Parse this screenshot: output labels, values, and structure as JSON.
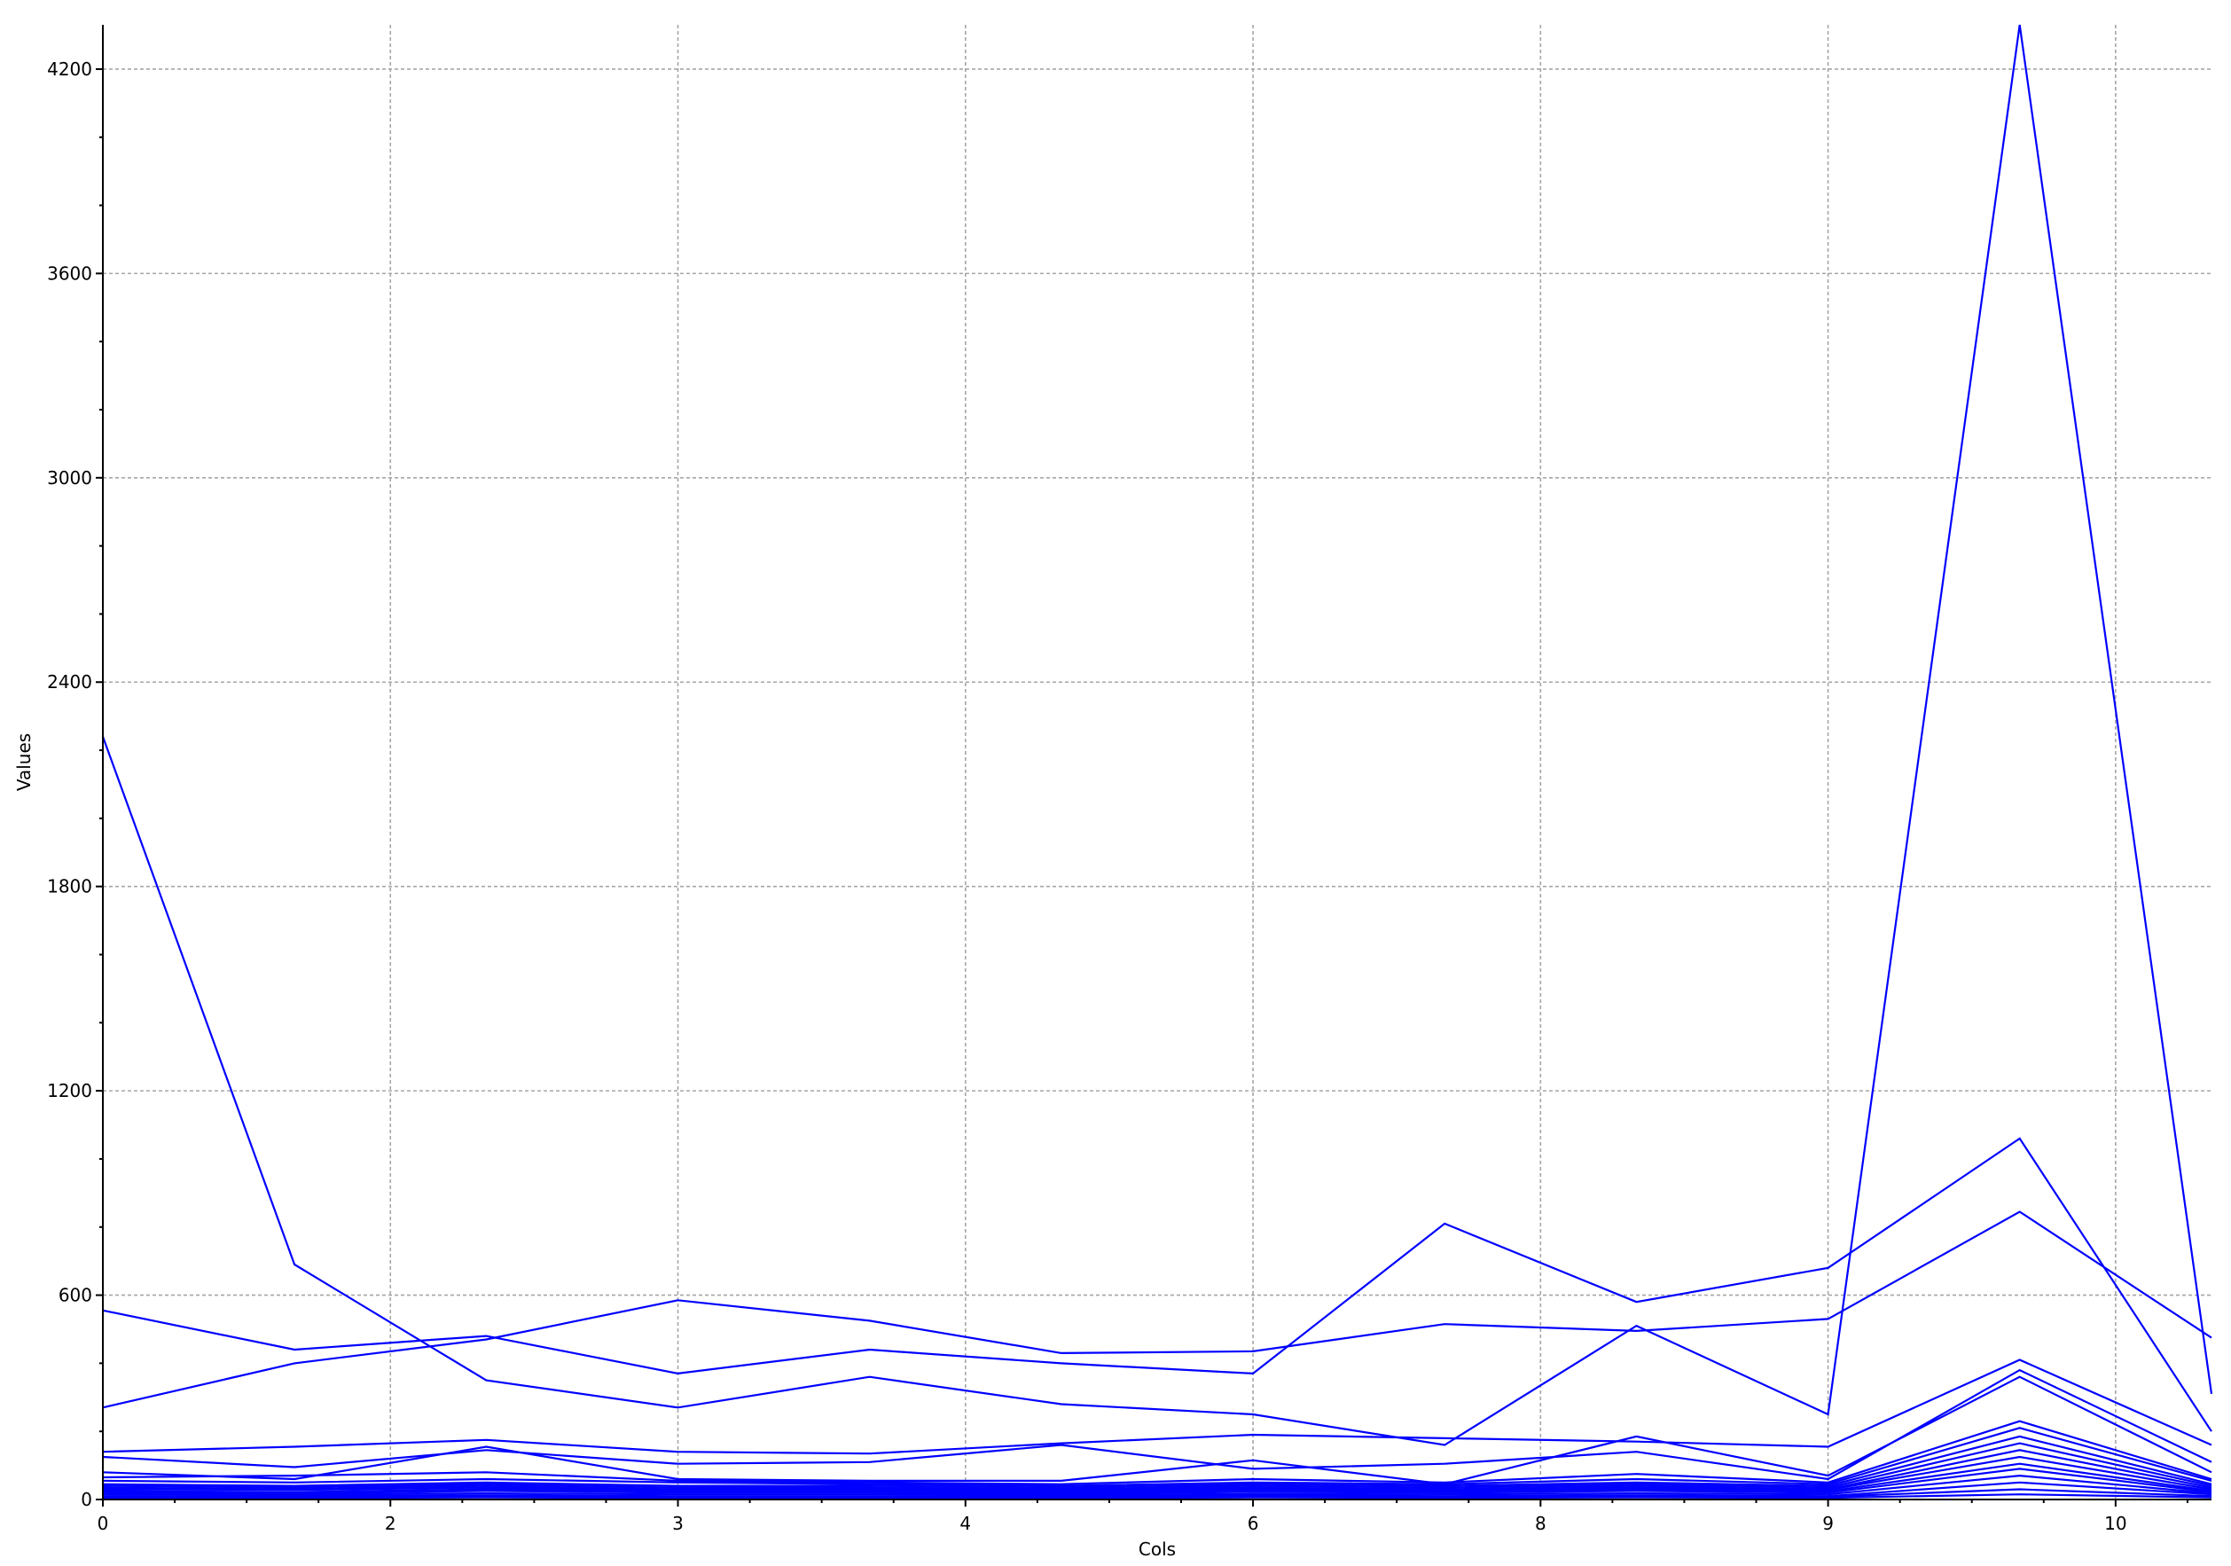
{
  "chart_data": {
    "type": "line",
    "xlabel": "Cols",
    "ylabel": "Values",
    "x": [
      0,
      1.333,
      2.667,
      4,
      5.333,
      6.667,
      8,
      9.333,
      10.667,
      12,
      13.333,
      14.667
    ],
    "xlim": [
      0,
      14.667
    ],
    "ylim": [
      0,
      4330
    ],
    "xticks": [
      0,
      2,
      4,
      6,
      8,
      10,
      12,
      14
    ],
    "xtick_labels": [
      "0",
      "2",
      "3",
      "4",
      "6",
      "8",
      "9",
      "10"
    ],
    "yticks": [
      0,
      600,
      1200,
      1800,
      2400,
      3000,
      3600,
      4200
    ],
    "ytick_labels": [
      "0",
      "600",
      "1200",
      "1800",
      "2400",
      "3000",
      "3600",
      "4200"
    ],
    "y_minor_step": 200,
    "grid": true,
    "legend": "none",
    "line_color": "#0000ff",
    "series": [
      {
        "values": [
          2240,
          690,
          350,
          270,
          360,
          280,
          250,
          160,
          510,
          250,
          4330,
          310
        ]
      },
      {
        "values": [
          270,
          400,
          470,
          585,
          525,
          430,
          435,
          515,
          495,
          530,
          845,
          475
        ]
      },
      {
        "values": [
          555,
          440,
          480,
          370,
          440,
          400,
          370,
          810,
          580,
          680,
          1060,
          200
        ]
      },
      {
        "values": [
          140,
          155,
          175,
          140,
          135,
          165,
          190,
          180,
          170,
          155,
          410,
          160
        ]
      },
      {
        "values": [
          125,
          95,
          145,
          105,
          110,
          160,
          90,
          105,
          140,
          60,
          380,
          110
        ]
      },
      {
        "values": [
          80,
          60,
          155,
          60,
          55,
          55,
          115,
          45,
          185,
          70,
          360,
          80
        ]
      },
      {
        "values": [
          65,
          70,
          80,
          55,
          50,
          45,
          60,
          50,
          75,
          50,
          230,
          60
        ]
      },
      {
        "values": [
          55,
          50,
          60,
          50,
          45,
          40,
          50,
          45,
          60,
          45,
          210,
          55
        ]
      },
      {
        "values": [
          45,
          40,
          50,
          40,
          40,
          35,
          45,
          40,
          50,
          40,
          185,
          45
        ]
      },
      {
        "values": [
          40,
          35,
          45,
          35,
          35,
          30,
          40,
          35,
          45,
          35,
          165,
          40
        ]
      },
      {
        "values": [
          35,
          30,
          40,
          30,
          30,
          28,
          35,
          30,
          40,
          30,
          145,
          35
        ]
      },
      {
        "values": [
          30,
          28,
          35,
          28,
          28,
          25,
          30,
          28,
          35,
          28,
          125,
          30
        ]
      },
      {
        "values": [
          25,
          22,
          30,
          24,
          24,
          22,
          25,
          24,
          30,
          24,
          105,
          25
        ]
      },
      {
        "values": [
          20,
          18,
          25,
          20,
          20,
          18,
          22,
          20,
          25,
          20,
          90,
          22
        ]
      },
      {
        "values": [
          15,
          14,
          18,
          15,
          15,
          14,
          16,
          15,
          18,
          15,
          70,
          18
        ]
      },
      {
        "values": [
          10,
          10,
          12,
          10,
          10,
          10,
          12,
          10,
          12,
          10,
          50,
          15
        ]
      },
      {
        "values": [
          8,
          7,
          9,
          8,
          8,
          7,
          9,
          8,
          9,
          8,
          30,
          10
        ]
      },
      {
        "values": [
          5,
          5,
          6,
          5,
          5,
          5,
          6,
          5,
          6,
          5,
          15,
          6
        ]
      }
    ]
  }
}
